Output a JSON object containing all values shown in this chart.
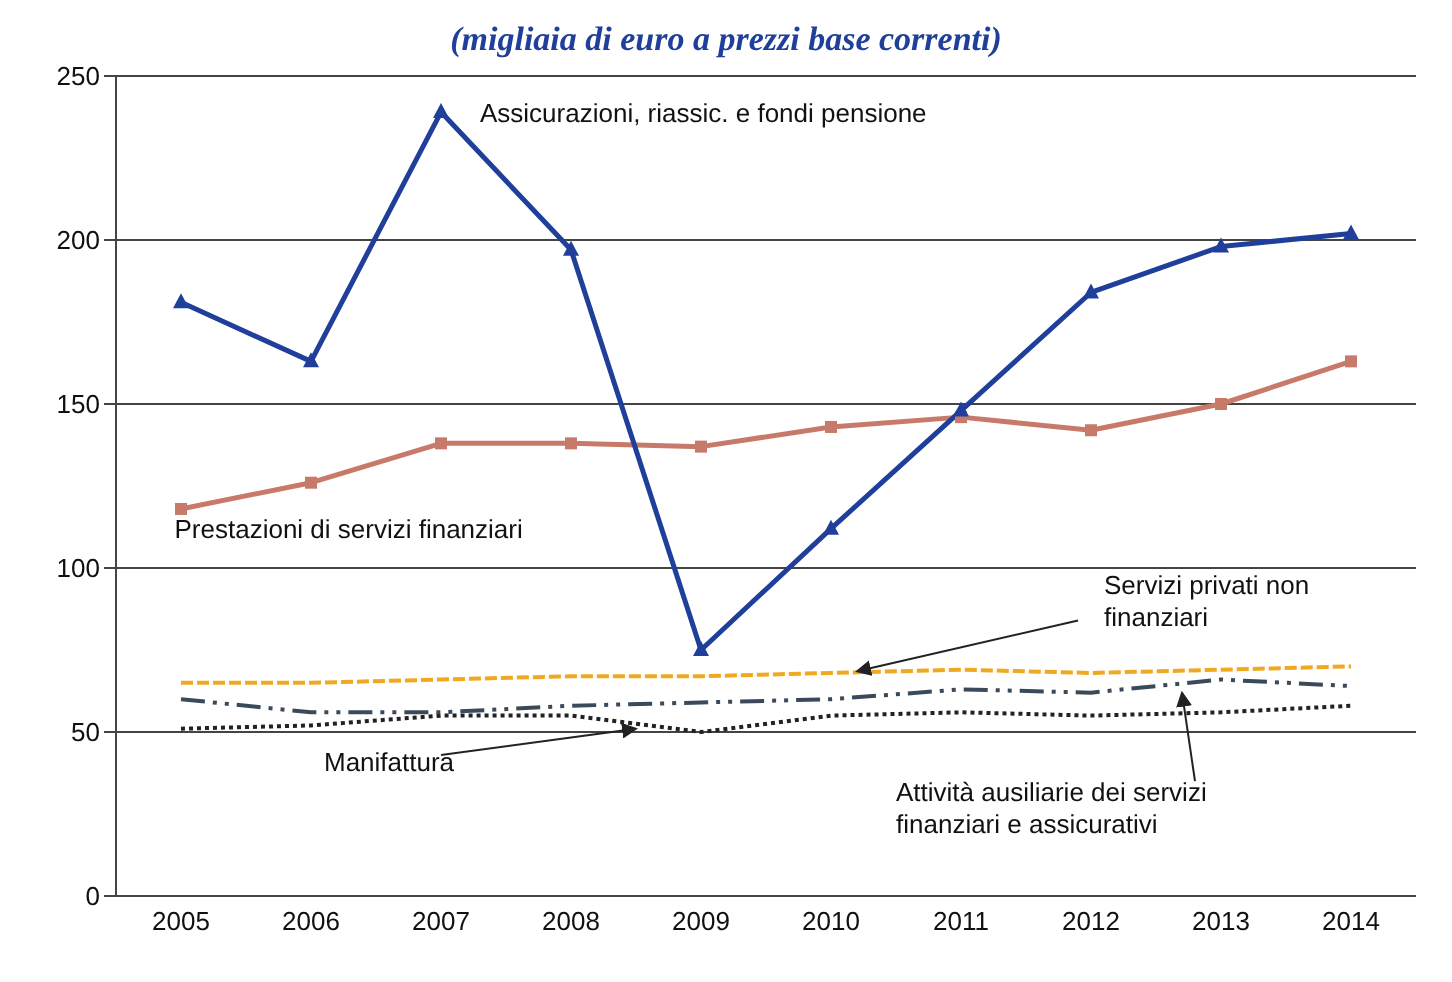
{
  "chart_data": {
    "type": "line",
    "title": "(migliaia di euro a prezzi base correnti)",
    "categories": [
      "2005",
      "2006",
      "2007",
      "2008",
      "2009",
      "2010",
      "2011",
      "2012",
      "2013",
      "2014"
    ],
    "series": [
      {
        "name": "Assicurazioni, riassic. e fondi pensione",
        "color": "#1f3f9a",
        "marker": "triangle",
        "line_style": "solid",
        "values": [
          181,
          163,
          239,
          197,
          75,
          112,
          148,
          184,
          198,
          202
        ]
      },
      {
        "name": "Prestazioni di servizi finanziari",
        "color": "#c87a6a",
        "marker": "square",
        "line_style": "solid",
        "values": [
          118,
          126,
          138,
          138,
          137,
          143,
          146,
          142,
          150,
          163
        ]
      },
      {
        "name": "Servizi privati non finanziari",
        "color": "#f0a820",
        "marker": "none",
        "line_style": "dashed",
        "values": [
          65,
          65,
          66,
          67,
          67,
          68,
          69,
          68,
          69,
          70
        ]
      },
      {
        "name": "Attività ausiliarie dei servizi finanziari e assicurativi",
        "color": "#3a4a5a",
        "marker": "none",
        "line_style": "dashdot",
        "values": [
          60,
          56,
          56,
          58,
          59,
          60,
          63,
          62,
          66,
          64
        ]
      },
      {
        "name": "Manifattura",
        "color": "#222222",
        "marker": "none",
        "line_style": "dotted",
        "values": [
          51,
          52,
          55,
          55,
          50,
          55,
          56,
          55,
          56,
          58
        ]
      }
    ],
    "ylim": [
      0,
      250
    ],
    "yticks": [
      0,
      50,
      100,
      150,
      200,
      250
    ],
    "grid": "y"
  }
}
